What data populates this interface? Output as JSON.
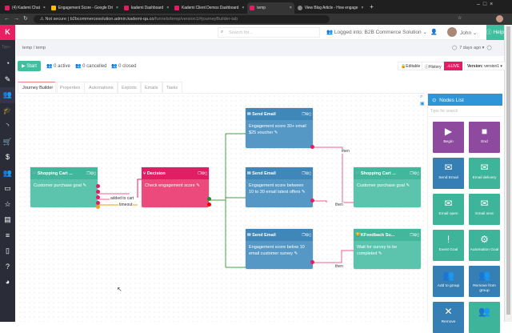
{
  "browser": {
    "tabs": [
      "(4) Kademi Chat",
      "Engagement Score - Google Dri",
      "kademi Dashboard",
      "Kademi Client Demos Dashboard",
      "temp",
      "View Blog Article - How engage"
    ],
    "active_tab": 4,
    "security": "Not secure",
    "url_host": "b2bcommercesolution.admin.kademi-qa.co",
    "url_path": "/funnels/temp/version1/#journeyBuilder-tab"
  },
  "header": {
    "logo": "K",
    "search_placeholder": "Search for...",
    "logged_into": "Logged into: B2B Commerce Solution",
    "user": "John",
    "help": "Help"
  },
  "sidebar": {
    "search_stub": "Typ",
    "icons": [
      "dashboard-icon",
      "edit-icon",
      "users-icon",
      "graduation-cap-icon",
      "rss-icon",
      "cart-icon",
      "dollar-icon",
      "group-icon",
      "monitor-icon",
      "star-icon",
      "id-card-icon",
      "database-icon",
      "file-icon",
      "help-icon",
      "pie-chart-icon"
    ]
  },
  "breadcrumb": {
    "items": [
      "temp",
      "temp"
    ],
    "time": "7 days ago"
  },
  "toolbar": {
    "start": "Start",
    "active": "0 active",
    "cancelled": "0 cancelled",
    "closed": "0 closed",
    "editable": "Editable",
    "history": "History",
    "live": "LIVE",
    "version_label": "Version:",
    "version": "version1"
  },
  "tabs": [
    "Journey Builder",
    "Properties",
    "Automations",
    "Exports",
    "Emails",
    "Tasks"
  ],
  "nodes": [
    {
      "type": "Shopping Cart ...",
      "body": "Customer purchase goal",
      "color": "teal"
    },
    {
      "type": "Decision",
      "body": "Check engagement score",
      "color": "pink"
    },
    {
      "type": "Send Email",
      "body": "Engagement score 30+ email $25 voucher",
      "color": "blue"
    },
    {
      "type": "Send Email",
      "body": "Engagement score between 10 to 30 email latest offers",
      "color": "blue"
    },
    {
      "type": "Send Email",
      "body": "Engagement score below 10 email customer survey",
      "color": "blue"
    },
    {
      "type": "Shopping Cart ...",
      "body": "Customer purchase goal",
      "color": "teal"
    },
    {
      "type": "KFeedback Su...",
      "body": "Wait for survey to be completed",
      "color": "teal"
    }
  ],
  "edge_labels": {
    "added": "added to cart",
    "timeout": "timeout",
    "then": "then"
  },
  "nodes_list": {
    "title": "Nodes List",
    "search_placeholder": "Type for search",
    "items": [
      {
        "label": "Begin",
        "icon": "play-icon",
        "color": "purple"
      },
      {
        "label": "End",
        "icon": "stop-icon",
        "color": "purple"
      },
      {
        "label": "Send Email",
        "icon": "envelope-icon",
        "color": "blue"
      },
      {
        "label": "Email delivery",
        "icon": "envelope-check-icon",
        "color": "green"
      },
      {
        "label": "Email open",
        "icon": "envelope-open-icon",
        "color": "green"
      },
      {
        "label": "Email sent",
        "icon": "envelope-icon",
        "color": "green"
      },
      {
        "label": "Event Goal",
        "icon": "exclamation-icon",
        "color": "green"
      },
      {
        "label": "Automation Goal",
        "icon": "gear-icon",
        "color": "green"
      },
      {
        "label": "Add to group",
        "icon": "users-icon",
        "color": "blue"
      },
      {
        "label": "Remove from group",
        "icon": "users-icon",
        "color": "blue"
      },
      {
        "label": "Remove",
        "icon": "close-icon",
        "color": "blue"
      },
      {
        "label": "",
        "icon": "users-icon",
        "color": "green"
      }
    ]
  },
  "colors": {
    "brand": "#e91e63",
    "teal": "#42b79c",
    "blue": "#3f87b9",
    "panel": "#2d95d8"
  }
}
